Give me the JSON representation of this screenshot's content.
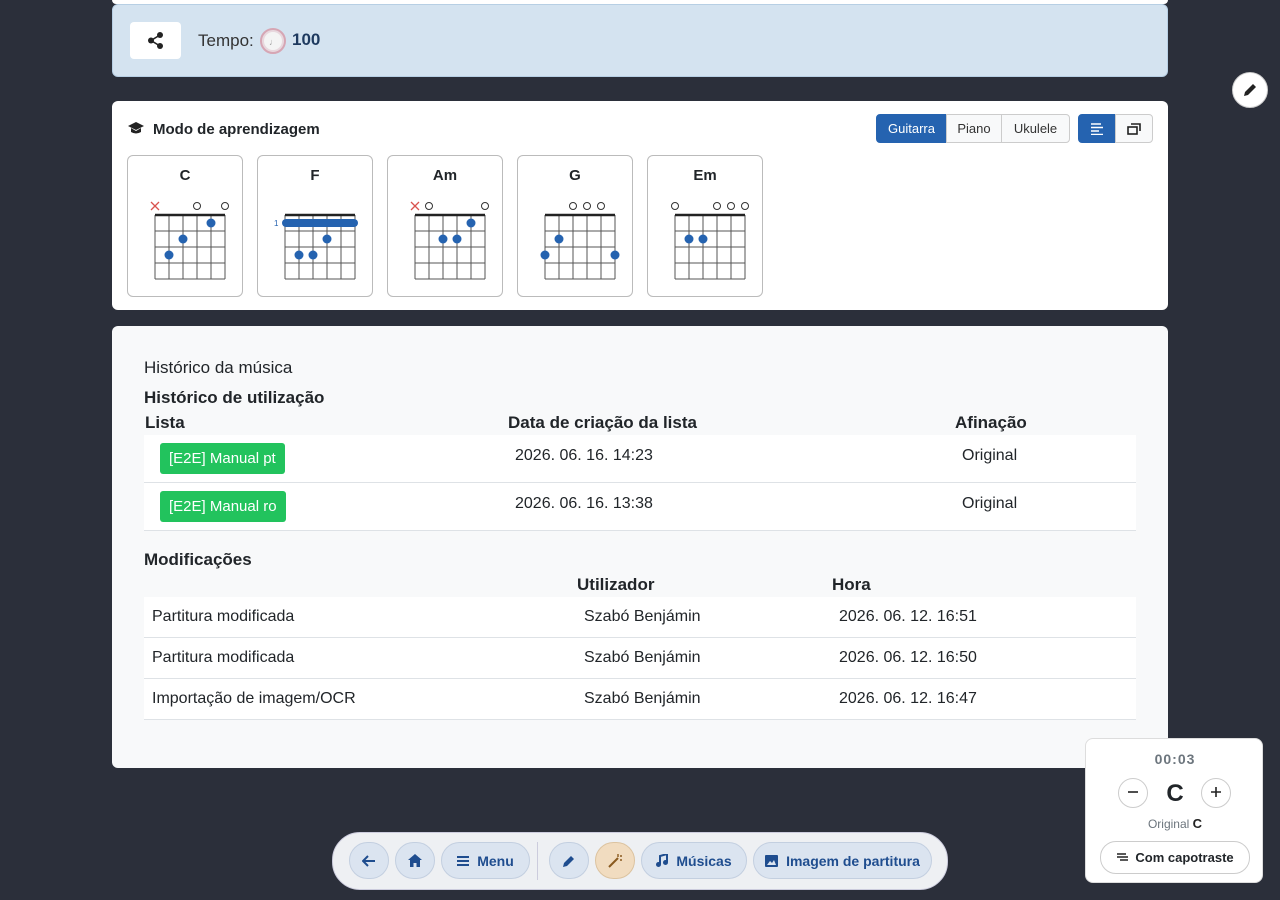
{
  "tempo": {
    "label": "Tempo:",
    "value": 100
  },
  "learning": {
    "title": "Modo de aprendizagem",
    "instruments": [
      "Guitarra",
      "Piano",
      "Ukulele"
    ],
    "chords": [
      {
        "name": "C"
      },
      {
        "name": "F",
        "fret": 1
      },
      {
        "name": "Am"
      },
      {
        "name": "G"
      },
      {
        "name": "Em"
      }
    ]
  },
  "history": {
    "title": "Histórico da música",
    "usage": {
      "title": "Histórico de utilização",
      "columns": [
        "Lista",
        "Data de criação da lista",
        "Afinação"
      ],
      "rows": [
        [
          "[E2E] Manual pt",
          "2026. 06. 16. 14:23",
          "Original"
        ],
        [
          "[E2E] Manual ro",
          "2026. 06. 16. 13:38",
          "Original"
        ]
      ]
    },
    "modifications": {
      "title": "Modificações",
      "columns": [
        "Utilizador",
        "Hora"
      ],
      "rows": [
        [
          "Partitura modificada",
          "Szabó Benjámin",
          "2026. 06. 12. 16:51"
        ],
        [
          "Partitura modificada",
          "Szabó Benjámin",
          "2026. 06. 12. 16:50"
        ],
        [
          "Importação de imagem/OCR",
          "Szabó Benjámin",
          "2026. 06. 12. 16:47"
        ]
      ]
    }
  },
  "toolbar": {
    "menu": "Menu",
    "songs": "Músicas",
    "sheet_image": "Imagem de partitura"
  },
  "transpose": {
    "time": "00:03",
    "key": "C",
    "original_label": "Original",
    "original_key": "C",
    "capo": "Com capotraste"
  }
}
